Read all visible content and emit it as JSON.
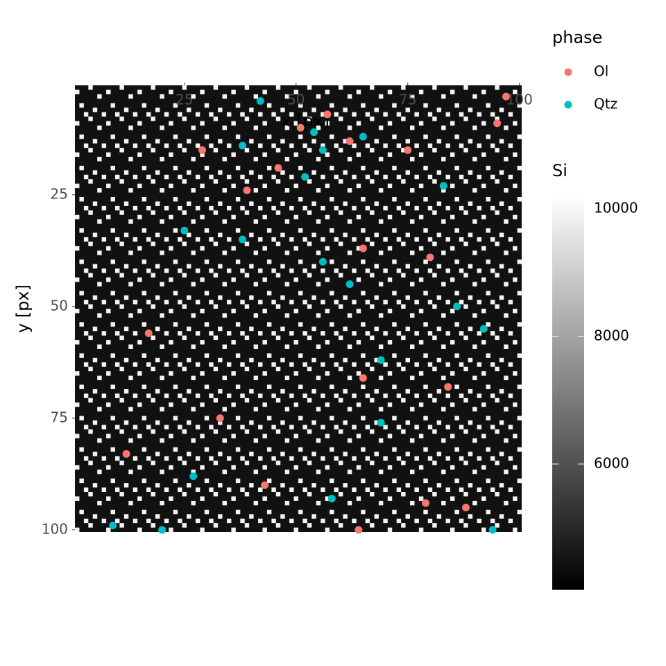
{
  "chart_data": {
    "type": "scatter",
    "x_label": "x [px]",
    "y_label": "y [px]",
    "xlim": [
      0.5,
      100.5
    ],
    "ylim": [
      0.5,
      100.5
    ],
    "y_reversed": true,
    "x_axis_position": "top",
    "xticks": [
      25,
      50,
      75,
      100
    ],
    "yticks": [
      25,
      50,
      75,
      100
    ],
    "legend_title": "phase",
    "series": [
      {
        "name": "Ol",
        "color": "#f8766d",
        "x": [
          97,
          95,
          57,
          51,
          62,
          75,
          29,
          46,
          39,
          65,
          80,
          17,
          65,
          84,
          33,
          12,
          43,
          79,
          88,
          64
        ],
        "values": [
          3,
          9,
          7,
          10,
          13,
          15,
          15,
          19,
          24,
          37,
          39,
          56,
          66,
          68,
          75,
          83,
          90,
          94,
          95,
          100
        ]
      },
      {
        "name": "Qtz",
        "color": "#00bfc4",
        "x": [
          42,
          54,
          65,
          38,
          56,
          52,
          83,
          25,
          38,
          56,
          62,
          86,
          92,
          69,
          69,
          27,
          58,
          9,
          20,
          94
        ],
        "values": [
          4,
          11,
          12,
          14,
          15,
          21,
          23,
          33,
          35,
          40,
          45,
          50,
          55,
          62,
          76,
          88,
          93,
          99,
          100,
          100
        ]
      }
    ],
    "colorbar": {
      "title": "Si",
      "lim": [
        4030,
        10230
      ],
      "ticks": [
        6000,
        8000,
        10000
      ],
      "low_color": "#000000",
      "high_color": "#ffffff"
    }
  }
}
